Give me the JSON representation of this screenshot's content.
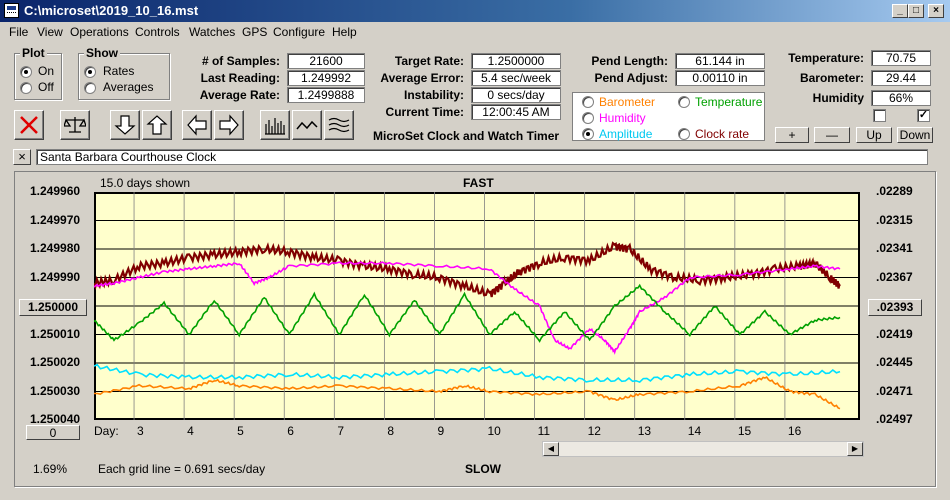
{
  "window": {
    "title": "C:\\microset\\2019_10_16.mst"
  },
  "menu": [
    "File",
    "View",
    "Operations",
    "Controls",
    "Watches",
    "GPS",
    "Configure",
    "Help"
  ],
  "plot_group": {
    "title": "Plot",
    "options": [
      "On",
      "Off"
    ],
    "selected": "On"
  },
  "show_group": {
    "title": "Show",
    "options": [
      "Rates",
      "Averages"
    ],
    "selected": "Rates"
  },
  "stats": {
    "samples_label": "# of Samples:",
    "samples": "21600",
    "last_reading_label": "Last Reading:",
    "last_reading": "1.249992",
    "avg_rate_label": "Average Rate:",
    "avg_rate": "1.2499888"
  },
  "target": {
    "target_rate_label": "Target Rate:",
    "target_rate": "1.2500000",
    "avg_error_label": "Average Error:",
    "avg_error": "5.4 sec/week",
    "instability_label": "Instability:",
    "instability": "0 secs/day",
    "current_time_label": "Current Time:",
    "current_time": "12:00:45 AM"
  },
  "app_name": "MicroSet Clock and Watch Timer",
  "pend": {
    "length_label": "Pend Length:",
    "length": "61.144 in",
    "adjust_label": "Pend Adjust:",
    "adjust": "0.00110 in"
  },
  "sensor_options": [
    {
      "label": "Barometer",
      "color": "#ff8000"
    },
    {
      "label": "Temperature",
      "color": "#00a000"
    },
    {
      "label": "Humidity",
      "color": "#ff00ff"
    },
    {
      "label": "Amplitude",
      "color": "#00dcff"
    },
    {
      "label": "Clock rate",
      "color": "#800000"
    }
  ],
  "sensor_selected": "Amplitude",
  "environment": {
    "temperature_label": "Temperature:",
    "temperature": "70.75",
    "barometer_label": "Barometer:",
    "barometer": "29.44",
    "humidity_label": "Humidity",
    "humidity": "66%"
  },
  "adjust_buttons": {
    "plus": "+",
    "minus": "—",
    "up": "Up",
    "down": "Down"
  },
  "clock_name": "Santa Barbara Courthouse Clock",
  "chart_data": {
    "type": "line",
    "days_shown": "15.0 days shown",
    "top_label": "FAST",
    "bottom_label": "SLOW",
    "grid_note": "Each grid line = 0.691 secs/day",
    "day_label": "Day:",
    "x_ticks": [
      "3",
      "4",
      "5",
      "6",
      "7",
      "8",
      "9",
      "10",
      "11",
      "12",
      "13",
      "14",
      "15",
      "16"
    ],
    "xlim": [
      2.1,
      17.4
    ],
    "left_ticks": [
      "1.249960",
      "1.249970",
      "1.249980",
      "1.249990",
      "1.250000",
      "1.250010",
      "1.250020",
      "1.250030",
      "1.250040"
    ],
    "left_selected": "1.250000",
    "ylim": [
      1.24996,
      1.25004
    ],
    "right_ticks": [
      ".02289",
      ".02315",
      ".02341",
      ".02367",
      ".02393",
      ".02419",
      ".02445",
      ".02471",
      ".02497"
    ],
    "right_selected": ".02393",
    "bottom_left_value": "0",
    "corner_percent": "1.69%",
    "grid": true,
    "series": [
      {
        "color": "#800000",
        "x": [
          2.1,
          2.5,
          3.0,
          3.5,
          4.0,
          4.5,
          5.0,
          5.5,
          6.0,
          6.5,
          7.0,
          7.5,
          8.0,
          8.5,
          9.0,
          9.5,
          10.0,
          10.3,
          10.6,
          11.0,
          11.5,
          12.0,
          12.5,
          12.8,
          13.2,
          13.7,
          14.2,
          14.7,
          15.2,
          15.7,
          16.2,
          16.5,
          16.8,
          17.0
        ],
        "y": [
          1.249992,
          1.249991,
          1.249986,
          1.249985,
          1.249983,
          1.249982,
          1.249981,
          1.24998,
          1.249981,
          1.249983,
          1.249984,
          1.249986,
          1.249987,
          1.249989,
          1.24999,
          1.249993,
          1.249996,
          1.249992,
          1.249988,
          1.249985,
          1.249983,
          1.249984,
          1.249979,
          1.24998,
          1.249987,
          1.24999,
          1.249991,
          1.24999,
          1.249989,
          1.249987,
          1.249986,
          1.249985,
          1.24999,
          1.249993
        ]
      },
      {
        "color": "#ff00ff",
        "x": [
          2.1,
          2.5,
          3.0,
          3.5,
          4.0,
          4.5,
          5.0,
          5.3,
          5.6,
          6.0,
          7.0,
          8.0,
          9.0,
          10.0,
          10.5,
          11.0,
          11.3,
          11.6,
          12.0,
          12.3,
          12.5,
          12.8,
          13.0,
          13.5,
          14.0,
          15.0,
          16.0,
          16.5,
          17.0
        ],
        "y": [
          1.249993,
          1.249992,
          1.24999,
          1.249988,
          1.249987,
          1.249986,
          1.249985,
          1.249992,
          1.24999,
          1.249986,
          1.249985,
          1.249985,
          1.249986,
          1.249987,
          1.249994,
          1.25,
          1.250012,
          1.250015,
          1.250008,
          1.250012,
          1.250016,
          1.250008,
          1.250002,
          1.249997,
          1.24999,
          1.249989,
          1.249987,
          1.249986,
          1.249987
        ]
      },
      {
        "color": "#00a000",
        "x": [
          2.1,
          2.5,
          3.0,
          3.5,
          4.0,
          4.5,
          5.0,
          5.5,
          6.0,
          6.5,
          7.0,
          7.5,
          8.0,
          8.5,
          9.0,
          9.5,
          10.0,
          10.5,
          11.0,
          11.5,
          12.0,
          12.5,
          13.0,
          13.5,
          14.0,
          14.5,
          15.0,
          15.5,
          16.0,
          16.5,
          17.0
        ],
        "y": [
          1.250005,
          1.250012,
          1.250006,
          1.249999,
          1.25001,
          1.249998,
          1.25001,
          1.249997,
          1.25001,
          1.249996,
          1.25001,
          1.249996,
          1.25001,
          1.249998,
          1.25001,
          1.249996,
          1.25001,
          1.250002,
          1.250012,
          1.250002,
          1.250012,
          1.25,
          1.249993,
          1.250002,
          1.25001,
          1.25,
          1.25001,
          1.250002,
          1.25001,
          1.250005,
          1.250004
        ]
      },
      {
        "color": "#00e0ff",
        "x": [
          2.1,
          3.0,
          4.0,
          5.0,
          6.0,
          7.0,
          8.0,
          9.0,
          10.0,
          11.0,
          12.0,
          13.0,
          14.0,
          15.0,
          16.0,
          17.0
        ],
        "y": [
          1.250021,
          1.250024,
          1.250025,
          1.250025,
          1.250024,
          1.250025,
          1.250024,
          1.250023,
          1.250022,
          1.250025,
          1.250026,
          1.250026,
          1.250024,
          1.250023,
          1.250024,
          1.250023
        ]
      },
      {
        "color": "#ff8000",
        "x": [
          2.1,
          3.0,
          4.0,
          4.5,
          5.0,
          6.0,
          7.0,
          8.0,
          9.0,
          9.5,
          10.0,
          11.0,
          12.0,
          12.5,
          13.0,
          14.0,
          15.0,
          15.5,
          16.0,
          16.5,
          17.0
        ],
        "y": [
          1.250031,
          1.250028,
          1.250029,
          1.250026,
          1.250028,
          1.250029,
          1.250028,
          1.250029,
          1.25003,
          1.250028,
          1.25003,
          1.250031,
          1.25003,
          1.250033,
          1.250031,
          1.25003,
          1.250028,
          1.250025,
          1.25003,
          1.250031,
          1.250036
        ]
      }
    ]
  }
}
